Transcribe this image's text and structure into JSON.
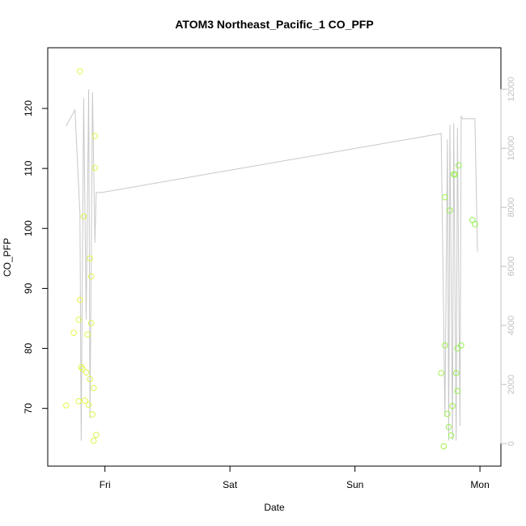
{
  "chart_data": {
    "type": "scatter",
    "title": "ATOM3 Northeast_Pacific_1 CO_PFP",
    "xlabel": "Date",
    "ylabel": "CO_PFP",
    "x_unit": "days since Thursday 00:00 (tick labels show weekday names)",
    "x_range": [
      0.62,
      4.09
    ],
    "ylim": [
      62.0,
      128.5
    ],
    "x_ticks": [
      {
        "value": 1,
        "label": "Fri"
      },
      {
        "value": 2,
        "label": "Sat"
      },
      {
        "value": 3,
        "label": "Sun"
      },
      {
        "value": 4,
        "label": "Mon"
      }
    ],
    "y_ticks": [
      70,
      80,
      90,
      100,
      110,
      120
    ],
    "y2_ticks": [
      0,
      2000,
      4000,
      6000,
      8000,
      10000,
      12000
    ],
    "y2_range": [
      -435,
      13075
    ],
    "grid": false,
    "series": [
      {
        "style": "points",
        "axis": "left",
        "colors": "yellow-green gradient",
        "points": [
          {
            "x": 0.69,
            "y": 70.5,
            "color": "#e8f548"
          },
          {
            "x": 0.75,
            "y": 82.6,
            "color": "#e8f548"
          },
          {
            "x": 0.79,
            "y": 71.2,
            "color": "#e6f54a"
          },
          {
            "x": 0.79,
            "y": 84.8,
            "color": "#e6f54a"
          },
          {
            "x": 0.8,
            "y": 88.1,
            "color": "#e5f54a"
          },
          {
            "x": 0.8,
            "y": 126.2,
            "color": "#e4f54b"
          },
          {
            "x": 0.81,
            "y": 76.9,
            "color": "#e4f54b"
          },
          {
            "x": 0.82,
            "y": 76.6,
            "color": "#e3f54b"
          },
          {
            "x": 0.83,
            "y": 102.0,
            "color": "#e3f54b"
          },
          {
            "x": 0.84,
            "y": 71.3,
            "color": "#e2f54c"
          },
          {
            "x": 0.85,
            "y": 76.0,
            "color": "#e1f54c"
          },
          {
            "x": 0.86,
            "y": 82.3,
            "color": "#e1f54c"
          },
          {
            "x": 0.87,
            "y": 70.6,
            "color": "#e0f54d"
          },
          {
            "x": 0.88,
            "y": 74.9,
            "color": "#e0f54d"
          },
          {
            "x": 0.88,
            "y": 95.0,
            "color": "#dff54d"
          },
          {
            "x": 0.89,
            "y": 92.0,
            "color": "#dff54d"
          },
          {
            "x": 0.89,
            "y": 84.2,
            "color": "#def54e"
          },
          {
            "x": 0.9,
            "y": 69.0,
            "color": "#def54e"
          },
          {
            "x": 0.91,
            "y": 64.6,
            "color": "#ddf54e"
          },
          {
            "x": 0.91,
            "y": 73.4,
            "color": "#ddf54e"
          },
          {
            "x": 0.92,
            "y": 115.4,
            "color": "#dcf54f"
          },
          {
            "x": 0.92,
            "y": 110.1,
            "color": "#dcf54f"
          },
          {
            "x": 0.93,
            "y": 65.6,
            "color": "#dbf54f"
          },
          {
            "x": 3.69,
            "y": 75.9,
            "color": "#a4f04f"
          },
          {
            "x": 3.71,
            "y": 63.7,
            "color": "#a2f04f"
          },
          {
            "x": 3.72,
            "y": 80.5,
            "color": "#a1f04f"
          },
          {
            "x": 3.72,
            "y": 105.2,
            "color": "#a0f04f"
          },
          {
            "x": 3.74,
            "y": 69.1,
            "color": "#9ff04f"
          },
          {
            "x": 3.75,
            "y": 66.9,
            "color": "#9ef04f"
          },
          {
            "x": 3.76,
            "y": 103.0,
            "color": "#9df04f"
          },
          {
            "x": 3.77,
            "y": 65.5,
            "color": "#9cf04f"
          },
          {
            "x": 3.78,
            "y": 70.4,
            "color": "#9bf04f"
          },
          {
            "x": 3.79,
            "y": 109.0,
            "color": "#9af04f"
          },
          {
            "x": 3.8,
            "y": 109.0,
            "color": "#99f04f"
          },
          {
            "x": 3.81,
            "y": 75.9,
            "color": "#98f04f"
          },
          {
            "x": 3.82,
            "y": 72.9,
            "color": "#97f04f"
          },
          {
            "x": 3.82,
            "y": 80.0,
            "color": "#96f04f"
          },
          {
            "x": 3.83,
            "y": 110.5,
            "color": "#95f04f"
          },
          {
            "x": 3.85,
            "y": 80.5,
            "color": "#94f04f"
          },
          {
            "x": 3.94,
            "y": 101.4,
            "color": "#90f04f"
          },
          {
            "x": 3.96,
            "y": 100.7,
            "color": "#8ff04f"
          }
        ]
      },
      {
        "style": "line",
        "axis": "right",
        "color": "#c8c8c8",
        "x": [
          0.69,
          0.76,
          0.8,
          0.81,
          0.83,
          0.85,
          0.87,
          0.88,
          0.9,
          0.92,
          0.93,
          0.97,
          3.69,
          3.72,
          3.74,
          3.75,
          3.76,
          3.78,
          3.79,
          3.81,
          3.82,
          3.84,
          3.85,
          3.86,
          3.91,
          3.94,
          3.96,
          3.98
        ],
        "y": [
          10750,
          11300,
          7800,
          100,
          11700,
          4200,
          12000,
          850,
          11900,
          6800,
          8500,
          8500,
          10500,
          900,
          10300,
          100,
          10800,
          120,
          10850,
          100,
          10700,
          600,
          11100,
          11000,
          11000,
          11000,
          11000,
          6500
        ]
      }
    ]
  }
}
